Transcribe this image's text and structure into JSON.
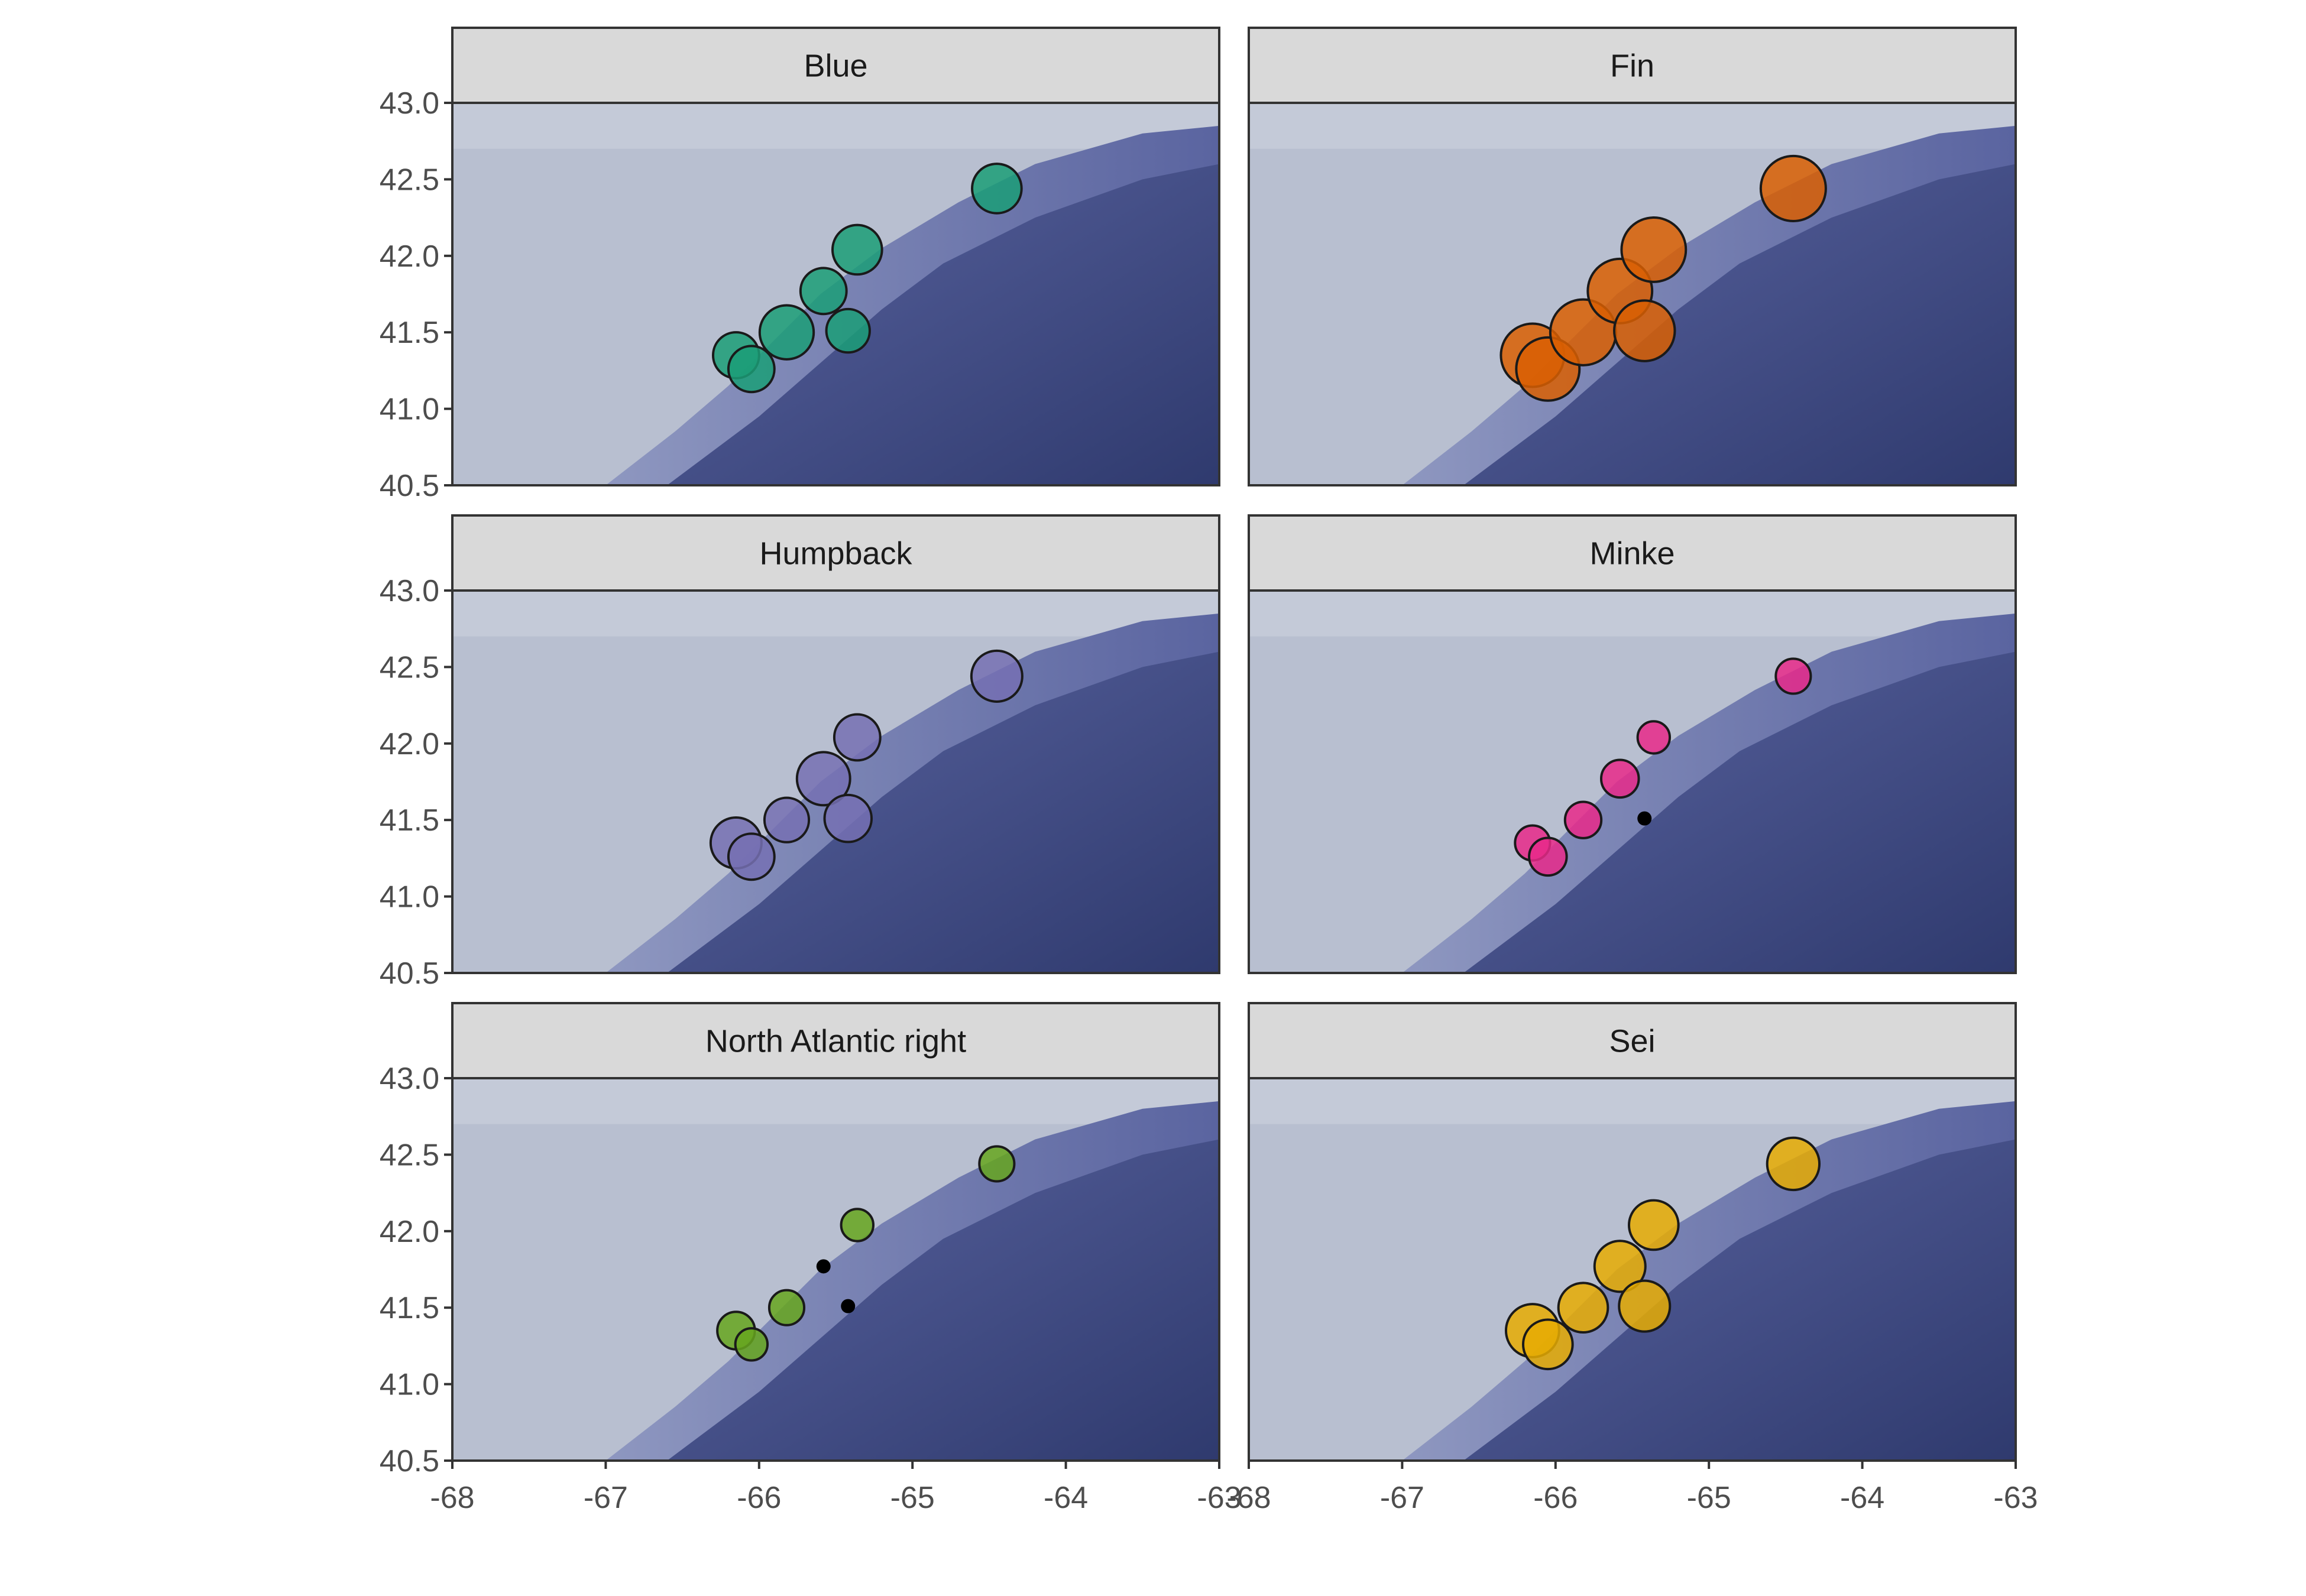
{
  "chart_data": {
    "type": "scatter",
    "facet_layout": "3 rows x 2 columns",
    "xlim": [
      -68,
      -63
    ],
    "ylim": [
      40.5,
      43.0
    ],
    "x_ticks": [
      "-68",
      "-67",
      "-66",
      "-65",
      "-64",
      "-63"
    ],
    "y_ticks": [
      "40.5",
      "41.0",
      "41.5",
      "42.0",
      "42.5",
      "43.0"
    ],
    "xlabel": "",
    "ylabel": "",
    "background": "bathymetry map (shallow shelf light, deep water dark blue)",
    "colors": {
      "shelf": "#b8bfd0",
      "deep": "#3a4478",
      "strip_fill": "#d9d9d9",
      "zero_point": "#000000"
    },
    "facets": [
      {
        "title": "Blue",
        "color": "#1b9e77",
        "points": [
          {
            "lon": -66.15,
            "lat": 41.35,
            "size": 0.45
          },
          {
            "lon": -66.05,
            "lat": 41.26,
            "size": 0.45
          },
          {
            "lon": -65.82,
            "lat": 41.5,
            "size": 0.62
          },
          {
            "lon": -65.58,
            "lat": 41.77,
            "size": 0.45
          },
          {
            "lon": -65.42,
            "lat": 41.51,
            "size": 0.4
          },
          {
            "lon": -65.36,
            "lat": 42.04,
            "size": 0.52
          },
          {
            "lon": -64.45,
            "lat": 42.44,
            "size": 0.52
          }
        ]
      },
      {
        "title": "Fin",
        "color": "#d95f02",
        "points": [
          {
            "lon": -66.15,
            "lat": 41.35,
            "size": 0.85
          },
          {
            "lon": -66.05,
            "lat": 41.26,
            "size": 0.85
          },
          {
            "lon": -65.82,
            "lat": 41.5,
            "size": 0.92
          },
          {
            "lon": -65.58,
            "lat": 41.77,
            "size": 0.88
          },
          {
            "lon": -65.42,
            "lat": 41.51,
            "size": 0.78
          },
          {
            "lon": -65.36,
            "lat": 42.04,
            "size": 0.88
          },
          {
            "lon": -64.45,
            "lat": 42.44,
            "size": 0.9
          }
        ]
      },
      {
        "title": "Humpback",
        "color": "#7570b3",
        "points": [
          {
            "lon": -66.15,
            "lat": 41.35,
            "size": 0.55
          },
          {
            "lon": -66.05,
            "lat": 41.26,
            "size": 0.45
          },
          {
            "lon": -65.82,
            "lat": 41.5,
            "size": 0.42
          },
          {
            "lon": -65.58,
            "lat": 41.77,
            "size": 0.6
          },
          {
            "lon": -65.42,
            "lat": 41.51,
            "size": 0.47
          },
          {
            "lon": -65.36,
            "lat": 42.04,
            "size": 0.45
          },
          {
            "lon": -64.45,
            "lat": 42.44,
            "size": 0.55
          }
        ]
      },
      {
        "title": "Minke",
        "color": "#e7298a",
        "points": [
          {
            "lon": -66.15,
            "lat": 41.35,
            "size": 0.26
          },
          {
            "lon": -66.05,
            "lat": 41.26,
            "size": 0.3
          },
          {
            "lon": -65.82,
            "lat": 41.5,
            "size": 0.28
          },
          {
            "lon": -65.58,
            "lat": 41.77,
            "size": 0.3
          },
          {
            "lon": -65.42,
            "lat": 41.51,
            "size": 0.0
          },
          {
            "lon": -65.36,
            "lat": 42.04,
            "size": 0.22
          },
          {
            "lon": -64.45,
            "lat": 42.44,
            "size": 0.26
          }
        ]
      },
      {
        "title": "North Atlantic right",
        "color": "#66a61e",
        "points": [
          {
            "lon": -66.15,
            "lat": 41.35,
            "size": 0.3
          },
          {
            "lon": -66.05,
            "lat": 41.26,
            "size": 0.22
          },
          {
            "lon": -65.82,
            "lat": 41.5,
            "size": 0.26
          },
          {
            "lon": -65.58,
            "lat": 41.77,
            "size": 0.0
          },
          {
            "lon": -65.42,
            "lat": 41.51,
            "size": 0.0
          },
          {
            "lon": -65.36,
            "lat": 42.04,
            "size": 0.22
          },
          {
            "lon": -64.45,
            "lat": 42.44,
            "size": 0.26
          }
        ]
      },
      {
        "title": "Sei",
        "color": "#e6ab02",
        "points": [
          {
            "lon": -66.15,
            "lat": 41.35,
            "size": 0.6
          },
          {
            "lon": -66.05,
            "lat": 41.26,
            "size": 0.52
          },
          {
            "lon": -65.82,
            "lat": 41.5,
            "size": 0.52
          },
          {
            "lon": -65.58,
            "lat": 41.77,
            "size": 0.55
          },
          {
            "lon": -65.42,
            "lat": 41.51,
            "size": 0.55
          },
          {
            "lon": -65.36,
            "lat": 42.04,
            "size": 0.52
          },
          {
            "lon": -64.45,
            "lat": 42.44,
            "size": 0.58
          }
        ]
      }
    ]
  }
}
